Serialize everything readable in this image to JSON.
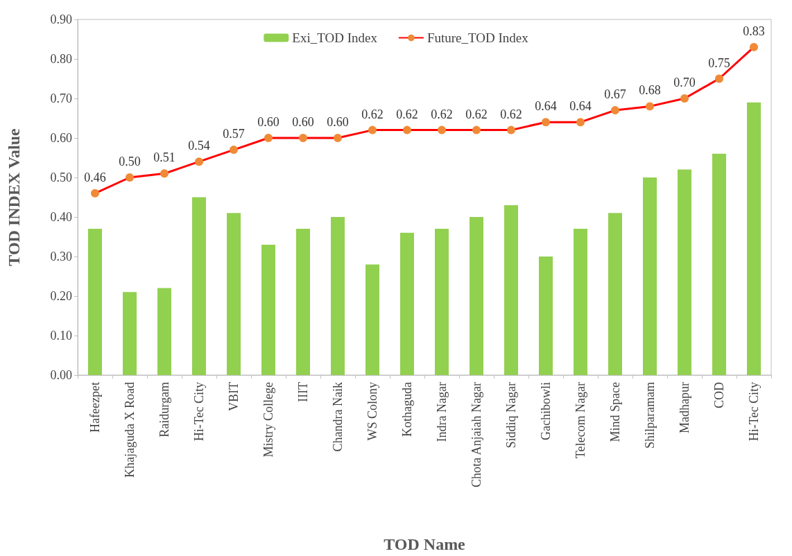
{
  "chart_data": {
    "type": "bar",
    "xlabel": "TOD Name",
    "ylabel": "TOD INDEX Value",
    "categories": [
      "Hafeezpet",
      "Khajaguda X Road",
      "Raidurgam",
      "Hi-Tec City",
      "VBIT",
      "Mistry College",
      "IIIT",
      "Chandra Naik",
      "WS Colony",
      "Kothaguda",
      "Indra Nagar",
      "Chota Anjaiah Nagar",
      "Siddiq Nagar",
      "Gachibowli",
      "Telecom Nagar",
      "Mind Space",
      "Shilparamam",
      "Madhapur",
      "COD",
      "Hi-Tec City"
    ],
    "series": [
      {
        "name": "Exi_TOD Index",
        "color": "#92d050",
        "values": [
          0.37,
          0.21,
          0.22,
          0.45,
          0.41,
          0.33,
          0.37,
          0.4,
          0.28,
          0.36,
          0.37,
          0.4,
          0.43,
          0.3,
          0.37,
          0.41,
          0.5,
          0.52,
          0.56,
          0.69
        ]
      },
      {
        "name": "Future_TOD Index",
        "type": "line",
        "color": "#ff0000",
        "marker": "circle",
        "values": [
          0.46,
          0.5,
          0.51,
          0.54,
          0.57,
          0.6,
          0.6,
          0.6,
          0.62,
          0.62,
          0.62,
          0.62,
          0.62,
          0.64,
          0.64,
          0.67,
          0.68,
          0.7,
          0.75,
          0.83
        ],
        "value_labels": [
          "0.46",
          "0.50",
          "0.51",
          "0.54",
          "0.57",
          "0.60",
          "0.60",
          "0.60",
          "0.62",
          "0.62",
          "0.62",
          "0.62",
          "0.62",
          "0.64",
          "0.64",
          "0.67",
          "0.68",
          "0.70",
          "0.75",
          "0.83"
        ]
      }
    ],
    "ylim": [
      0,
      0.9
    ],
    "yticks": [
      {
        "value": 0,
        "label": "0.00"
      },
      {
        "value": 0.1,
        "label": "0.10"
      },
      {
        "value": 0.2,
        "label": "0.20"
      },
      {
        "value": 0.3,
        "label": "0.30"
      },
      {
        "value": 0.4,
        "label": "0.40"
      },
      {
        "value": 0.5,
        "label": "0.50"
      },
      {
        "value": 0.6,
        "label": "0.60"
      },
      {
        "value": 0.7,
        "label": "0.70"
      },
      {
        "value": 0.8,
        "label": "0.80"
      },
      {
        "value": 0.9,
        "label": "0.90"
      }
    ],
    "grid": false,
    "legend": "top"
  }
}
